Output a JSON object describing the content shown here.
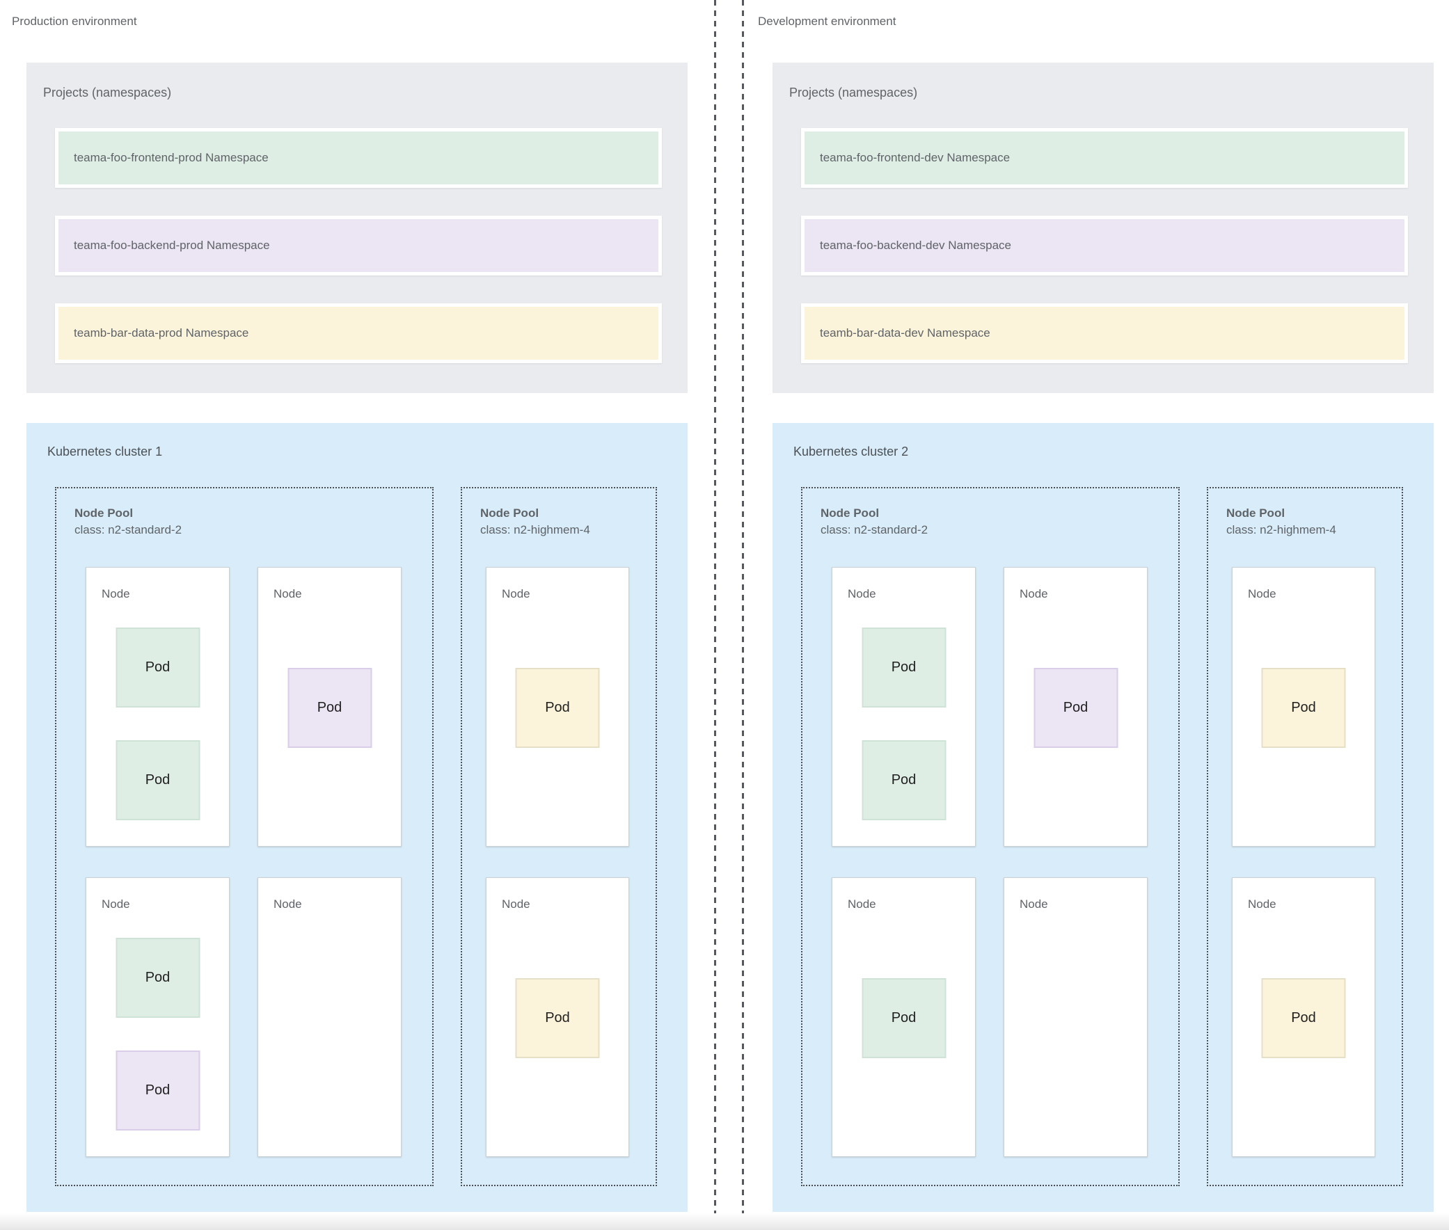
{
  "palette": {
    "page_bg": "#ffffff",
    "projects_bg": "#e9ebee",
    "cluster_bg": "#d8edf9",
    "node_bg": "#ffffff",
    "node_border": "#cdd1d5",
    "dotted_border": "#4a4d51",
    "divider": "#55595e",
    "label_text": "#5f6368",
    "pod_text": "#1f1f1f",
    "green": {
      "bg": "#dfeee5",
      "border": "#cfe2d6"
    },
    "purple": {
      "bg": "#ece5f3",
      "border": "#d9cdea"
    },
    "yellow": {
      "bg": "#fcf4da",
      "border": "#e6dfc8"
    }
  },
  "environments": [
    {
      "title": "Production environment",
      "projects": {
        "title": "Projects (namespaces)",
        "namespaces": [
          {
            "label": "teama-foo-frontend-prod Namespace",
            "color": "green"
          },
          {
            "label": "teama-foo-backend-prod Namespace",
            "color": "purple"
          },
          {
            "label": "teamb-bar-data-prod Namespace",
            "color": "yellow"
          }
        ]
      },
      "cluster": {
        "title": "Kubernetes cluster 1",
        "node_pools": [
          {
            "title": "Node Pool",
            "class_label": "class: n2-standard-2",
            "nodes": [
              {
                "label": "Node",
                "pods": [
                  {
                    "label": "Pod",
                    "color": "green"
                  },
                  {
                    "label": "Pod",
                    "color": "green"
                  }
                ]
              },
              {
                "label": "Node",
                "pods": [
                  {
                    "label": "Pod",
                    "color": "purple"
                  }
                ]
              },
              {
                "label": "Node",
                "pods": [
                  {
                    "label": "Pod",
                    "color": "green"
                  },
                  {
                    "label": "Pod",
                    "color": "purple"
                  }
                ]
              },
              {
                "label": "Node",
                "pods": []
              }
            ]
          },
          {
            "title": "Node Pool",
            "class_label": "class: n2-highmem-4",
            "nodes": [
              {
                "label": "Node",
                "pods": [
                  {
                    "label": "Pod",
                    "color": "yellow"
                  }
                ]
              },
              {
                "label": "Node",
                "pods": [
                  {
                    "label": "Pod",
                    "color": "yellow"
                  }
                ]
              }
            ]
          }
        ]
      }
    },
    {
      "title": "Development environment",
      "projects": {
        "title": "Projects (namespaces)",
        "namespaces": [
          {
            "label": "teama-foo-frontend-dev Namespace",
            "color": "green"
          },
          {
            "label": "teama-foo-backend-dev Namespace",
            "color": "purple"
          },
          {
            "label": "teamb-bar-data-dev Namespace",
            "color": "yellow"
          }
        ]
      },
      "cluster": {
        "title": "Kubernetes cluster 2",
        "node_pools": [
          {
            "title": "Node Pool",
            "class_label": "class: n2-standard-2",
            "nodes": [
              {
                "label": "Node",
                "pods": [
                  {
                    "label": "Pod",
                    "color": "green"
                  },
                  {
                    "label": "Pod",
                    "color": "green"
                  }
                ]
              },
              {
                "label": "Node",
                "pods": [
                  {
                    "label": "Pod",
                    "color": "purple"
                  }
                ]
              },
              {
                "label": "Node",
                "pods": [
                  {
                    "label": "Pod",
                    "color": "green"
                  }
                ]
              },
              {
                "label": "Node",
                "pods": []
              }
            ]
          },
          {
            "title": "Node Pool",
            "class_label": "class: n2-highmem-4",
            "nodes": [
              {
                "label": "Node",
                "pods": [
                  {
                    "label": "Pod",
                    "color": "yellow"
                  }
                ]
              },
              {
                "label": "Node",
                "pods": [
                  {
                    "label": "Pod",
                    "color": "yellow"
                  }
                ]
              }
            ]
          }
        ]
      }
    }
  ]
}
